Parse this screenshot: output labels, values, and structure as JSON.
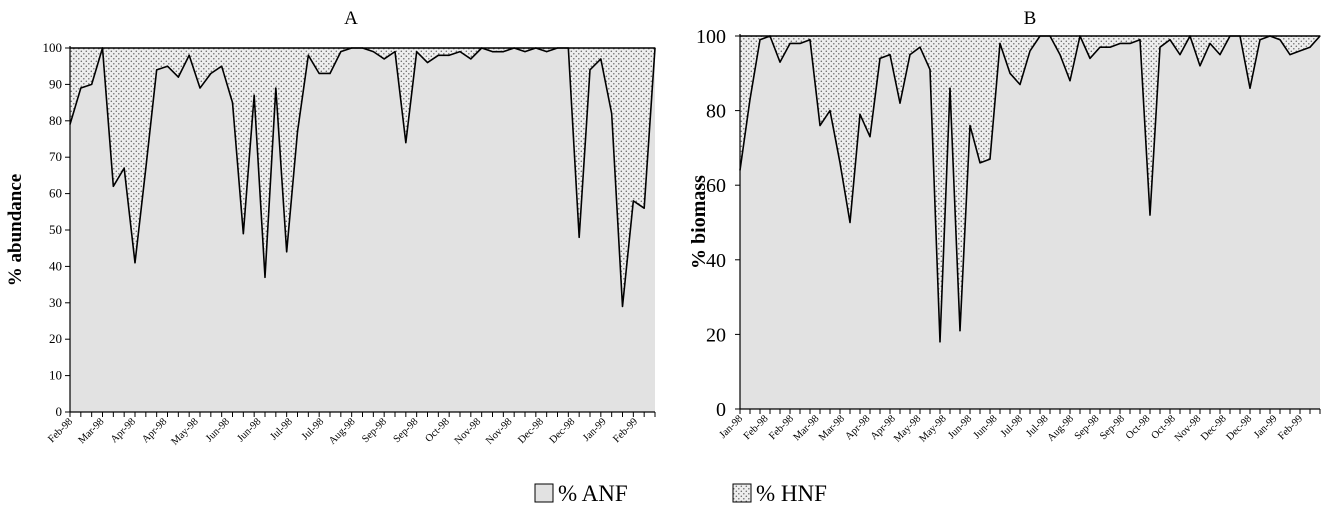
{
  "legend": {
    "items": [
      {
        "label": "% ANF",
        "fill": "#e2e2e2",
        "pattern": "solid"
      },
      {
        "label": "% HNF",
        "fill": "#e2e2e2",
        "pattern": "dots"
      }
    ]
  },
  "colors": {
    "anf_fill": "#e2e2e2",
    "hnf_bg": "#eeeeee",
    "dots": "#6a6a6a",
    "line": "#000000"
  },
  "chart_data": [
    {
      "type": "area",
      "title": "A",
      "ylabel": "% abundance",
      "xlabel": "",
      "ylim": [
        0,
        100
      ],
      "yticks": [
        0,
        10,
        20,
        30,
        40,
        50,
        60,
        70,
        80,
        90,
        100
      ],
      "xtick_labels": [
        "Feb-98",
        "Mar-98",
        "Apr-98",
        "Apr-98",
        "May-98",
        "Jun-98",
        "Jun-98",
        "Jul-98",
        "Jul-98",
        "Aug-98",
        "Sep-98",
        "Sep-98",
        "Oct-98",
        "Nov-98",
        "Nov-98",
        "Dec-98",
        "Dec-98",
        "Jan-99",
        "Feb-99"
      ],
      "grid": false,
      "series": [
        {
          "name": "% ANF",
          "values": [
            79,
            89,
            90,
            100,
            62,
            67,
            41,
            67,
            94,
            95,
            92,
            98,
            89,
            93,
            95,
            85,
            49,
            87,
            37,
            89,
            44,
            77,
            98,
            93,
            93,
            99,
            100,
            100,
            99,
            97,
            99,
            74,
            99,
            96,
            98,
            98,
            99,
            97,
            100,
            99,
            99,
            100,
            99,
            100,
            99,
            100,
            100,
            48,
            94,
            97,
            82,
            29,
            58,
            56,
            100
          ]
        },
        {
          "name": "% HNF",
          "values": [
            21,
            11,
            10,
            0,
            38,
            33,
            59,
            33,
            6,
            5,
            8,
            2,
            11,
            7,
            5,
            15,
            51,
            13,
            63,
            11,
            56,
            23,
            2,
            7,
            7,
            1,
            0,
            0,
            1,
            3,
            1,
            26,
            1,
            4,
            2,
            2,
            1,
            3,
            0,
            1,
            1,
            0,
            1,
            0,
            1,
            0,
            0,
            52,
            6,
            3,
            18,
            71,
            42,
            44,
            0
          ]
        }
      ]
    },
    {
      "type": "area",
      "title": "B",
      "ylabel": "% biomass",
      "xlabel": "",
      "ylim": [
        0,
        100
      ],
      "yticks": [
        0,
        20,
        40,
        60,
        80,
        100
      ],
      "xtick_labels": [
        "Jan-98",
        "Feb-98",
        "Feb-98",
        "Mar-98",
        "Mar-98",
        "Apr-98",
        "Apr-98",
        "May-98",
        "May-98",
        "Jun-98",
        "Jun-98",
        "Jul-98",
        "Jul-98",
        "Aug-98",
        "Sep-98",
        "Sep-98",
        "Oct-98",
        "Oct-98",
        "Nov-98",
        "Dec-98",
        "Dec-98",
        "Jan-99",
        "Feb-99"
      ],
      "grid": false,
      "series": [
        {
          "name": "% ANF",
          "values": [
            64,
            83,
            99,
            100,
            93,
            98,
            98,
            99,
            76,
            80,
            66,
            50,
            79,
            73,
            94,
            95,
            82,
            95,
            97,
            91,
            18,
            86,
            21,
            76,
            66,
            67,
            98,
            90,
            87,
            96,
            100,
            100,
            95,
            88,
            100,
            94,
            97,
            97,
            98,
            98,
            99,
            52,
            97,
            99,
            95,
            100,
            92,
            98,
            95,
            100,
            100,
            86,
            99,
            100,
            99,
            95,
            96,
            97,
            100
          ]
        },
        {
          "name": "% HNF",
          "values": [
            36,
            17,
            1,
            0,
            7,
            2,
            2,
            1,
            24,
            20,
            34,
            50,
            21,
            27,
            6,
            5,
            18,
            5,
            3,
            9,
            82,
            14,
            79,
            24,
            34,
            33,
            2,
            10,
            13,
            4,
            0,
            0,
            5,
            12,
            0,
            6,
            3,
            3,
            2,
            2,
            1,
            48,
            3,
            1,
            5,
            0,
            8,
            2,
            5,
            0,
            0,
            14,
            1,
            0,
            1,
            5,
            4,
            3,
            0
          ]
        }
      ]
    }
  ]
}
